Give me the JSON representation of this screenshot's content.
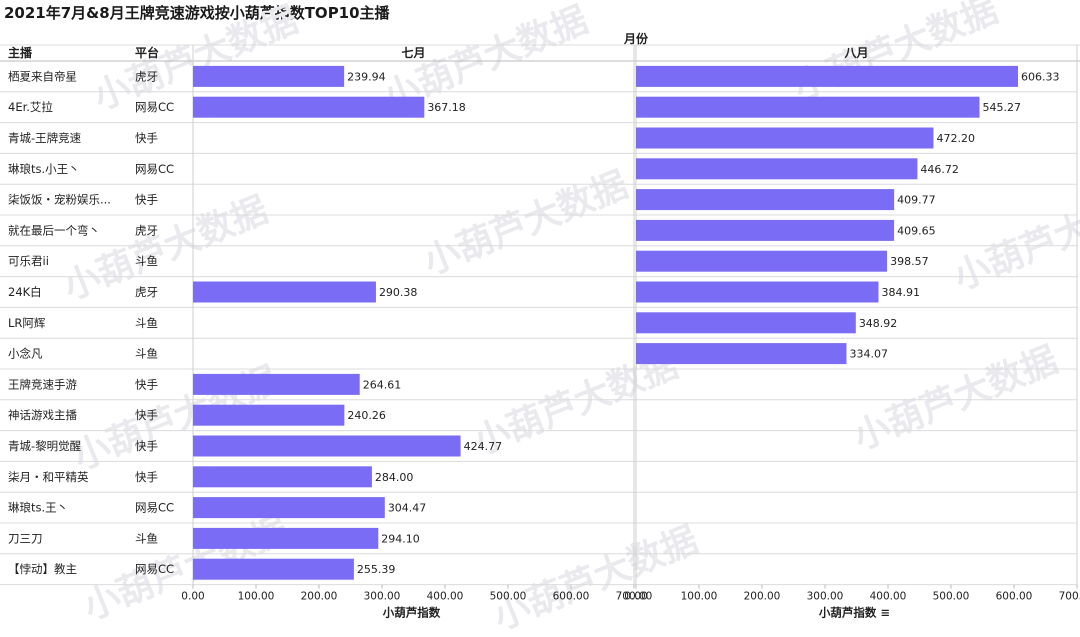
{
  "chart_data": {
    "type": "bar",
    "orientation": "horizontal",
    "title": "2021年7月&8月王牌竞速游戏按小葫芦指数TOP10主播",
    "column_header": "月份",
    "row_headers": [
      "主播",
      "平台"
    ],
    "panels": [
      "七月",
      "八月"
    ],
    "rows": [
      {
        "name": "栖夏来自帝星",
        "platform": "虎牙",
        "jul": "239.94",
        "aug": "606.33"
      },
      {
        "name": "4Er.艾拉",
        "platform": "网易CC",
        "jul": "367.18",
        "aug": "545.27"
      },
      {
        "name": "青城-王牌竞速",
        "platform": "快手",
        "jul": null,
        "aug": "472.20"
      },
      {
        "name": "琳琅ts.小王丶",
        "platform": "网易CC",
        "jul": null,
        "aug": "446.72"
      },
      {
        "name": "柒饭饭・宠粉娱乐...",
        "platform": "快手",
        "jul": null,
        "aug": "409.77"
      },
      {
        "name": "就在最后一个弯丶",
        "platform": "虎牙",
        "jul": null,
        "aug": "409.65"
      },
      {
        "name": "可乐君ii",
        "platform": "斗鱼",
        "jul": null,
        "aug": "398.57"
      },
      {
        "name": "24K白",
        "platform": "虎牙",
        "jul": "290.38",
        "aug": "384.91"
      },
      {
        "name": "LR阿辉",
        "platform": "斗鱼",
        "jul": null,
        "aug": "348.92"
      },
      {
        "name": "小念凡",
        "platform": "斗鱼",
        "jul": null,
        "aug": "334.07"
      },
      {
        "name": "王牌竞速手游",
        "platform": "快手",
        "jul": "264.61",
        "aug": null
      },
      {
        "name": "神话游戏主播",
        "platform": "快手",
        "jul": "240.26",
        "aug": null
      },
      {
        "name": "青城-黎明觉醒",
        "platform": "快手",
        "jul": "424.77",
        "aug": null
      },
      {
        "name": "柒月・和平精英",
        "platform": "快手",
        "jul": "284.00",
        "aug": null
      },
      {
        "name": "琳琅ts.王丶",
        "platform": "网易CC",
        "jul": "304.47",
        "aug": null
      },
      {
        "name": "刀三刀",
        "platform": "斗鱼",
        "jul": "294.10",
        "aug": null
      },
      {
        "name": "【悖动】教主",
        "platform": "网易CC",
        "jul": "255.39",
        "aug": null
      }
    ],
    "x_ticks": [
      "0.00",
      "100.00",
      "200.00",
      "300.00",
      "400.00",
      "500.00",
      "600.00",
      "700.00"
    ],
    "xlim": [
      0,
      700
    ],
    "xlabel": "小葫芦指数",
    "xlabel_right_suffix": "≡",
    "bar_color": "#7b6cf6",
    "watermark": "小葫芦大数据"
  }
}
